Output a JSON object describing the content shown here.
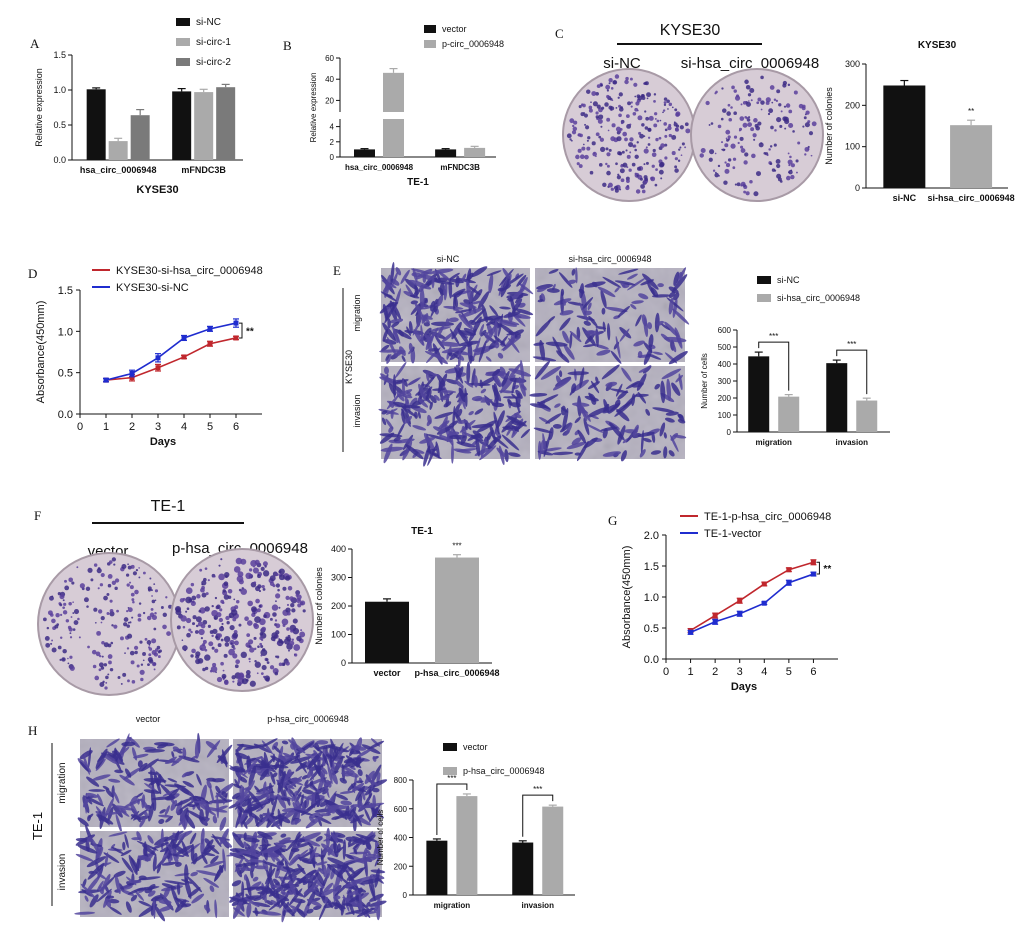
{
  "panels": {
    "A": {
      "letter": "A"
    },
    "B": {
      "letter": "B"
    },
    "C": {
      "letter": "C",
      "group": "KYSE30",
      "labels": [
        "si-NC",
        "si-hsa_circ_0006948"
      ]
    },
    "D": {
      "letter": "D"
    },
    "E": {
      "letter": "E",
      "col_labels": [
        "si-NC",
        "si-hsa_circ_0006948"
      ],
      "row_labels": [
        "migration",
        "invasion"
      ],
      "side_label": "KYSE30"
    },
    "F": {
      "letter": "F",
      "group": "TE-1",
      "labels": [
        "vector",
        "p-hsa_circ_0006948"
      ]
    },
    "G": {
      "letter": "G"
    },
    "H": {
      "letter": "H",
      "col_labels": [
        "vector",
        "p-hsa_circ_0006948"
      ],
      "row_labels": [
        "migration",
        "invasion"
      ],
      "side_label": "TE-1"
    }
  },
  "chart_data": [
    {
      "id": "A",
      "type": "bar",
      "title": "",
      "xlabel": "KYSE30",
      "ylabel": "Relative expression",
      "ylim": [
        0,
        1.5
      ],
      "yticks": [
        "0.0",
        "0.5",
        "1.0",
        "1.5"
      ],
      "categories": [
        "hsa_circ_0006948",
        "mFNDC3B"
      ],
      "series": [
        {
          "name": "si-NC",
          "color": "#111111",
          "values": [
            1.01,
            0.98
          ],
          "errors": [
            0.02,
            0.04
          ]
        },
        {
          "name": "si-circ-1",
          "color": "#aaaaaa",
          "values": [
            0.27,
            0.97
          ],
          "errors": [
            0.04,
            0.04
          ]
        },
        {
          "name": "si-circ-2",
          "color": "#7a7a7a",
          "values": [
            0.64,
            1.04
          ],
          "errors": [
            0.08,
            0.04
          ]
        }
      ]
    },
    {
      "id": "B",
      "type": "bar",
      "title": "",
      "xlabel": "TE-1",
      "ylabel": "Relative expression",
      "ylim": [
        0,
        60
      ],
      "yticks": [
        "0",
        "2",
        "4",
        "20",
        "40",
        "60"
      ],
      "categories": [
        "hsa_circ_0006948",
        "mFNDC3B"
      ],
      "series": [
        {
          "name": "vector",
          "color": "#111111",
          "values": [
            1,
            1
          ],
          "errors": [
            0.1,
            0.1
          ]
        },
        {
          "name": "p-circ_0006948",
          "color": "#aaaaaa",
          "values": [
            46,
            1.2
          ],
          "errors": [
            4,
            0.2
          ]
        }
      ]
    },
    {
      "id": "C",
      "type": "bar",
      "title": "KYSE30",
      "xlabel": "",
      "ylabel": "Number of colonies",
      "ylim": [
        0,
        300
      ],
      "yticks": [
        "0",
        "100",
        "200",
        "300"
      ],
      "categories": [
        "si-NC",
        "si-hsa_circ_0006948"
      ],
      "values": [
        248,
        152
      ],
      "errors": [
        12,
        12
      ],
      "colors": [
        "#111111",
        "#aaaaaa"
      ],
      "significance": [
        "",
        "**"
      ]
    },
    {
      "id": "D",
      "type": "line",
      "title": "",
      "xlabel": "Days",
      "ylabel": "Absorbance(450mm)",
      "xlim": [
        0,
        7
      ],
      "ylim": [
        0,
        1.5
      ],
      "xticks": [
        "0",
        "1",
        "2",
        "3",
        "4",
        "5",
        "6"
      ],
      "yticks": [
        "0.0",
        "0.5",
        "1.0",
        "1.5"
      ],
      "x": [
        1,
        2,
        3,
        4,
        5,
        6
      ],
      "series": [
        {
          "name": "KYSE30-si-hsa_circ_0006948",
          "color": "#c0272d",
          "values": [
            0.41,
            0.44,
            0.56,
            0.69,
            0.85,
            0.92
          ],
          "errors": [
            0.02,
            0.04,
            0.04,
            0.02,
            0.03,
            0.02
          ]
        },
        {
          "name": "KYSE30-si-NC",
          "color": "#1f2ccf",
          "values": [
            0.41,
            0.49,
            0.68,
            0.92,
            1.03,
            1.1
          ],
          "errors": [
            0.02,
            0.04,
            0.05,
            0.03,
            0.03,
            0.05
          ]
        }
      ],
      "annotation": "**"
    },
    {
      "id": "E",
      "type": "bar",
      "title": "",
      "xlabel": "",
      "ylabel": "Number of cells",
      "ylim": [
        0,
        600
      ],
      "yticks": [
        "0",
        "100",
        "200",
        "300",
        "400",
        "500",
        "600"
      ],
      "categories": [
        "migration",
        "invasion"
      ],
      "series": [
        {
          "name": "si-NC",
          "color": "#111111",
          "values": [
            445,
            405
          ],
          "errors": [
            25,
            18
          ]
        },
        {
          "name": "si-hsa_circ_0006948",
          "color": "#aaaaaa",
          "values": [
            208,
            185
          ],
          "errors": [
            12,
            14
          ]
        }
      ],
      "significance": [
        "***",
        "***"
      ]
    },
    {
      "id": "F",
      "type": "bar",
      "title": "TE-1",
      "xlabel": "",
      "ylabel": "Number of colonies",
      "ylim": [
        0,
        400
      ],
      "yticks": [
        "0",
        "100",
        "200",
        "300",
        "400"
      ],
      "categories": [
        "vector",
        "p-hsa_circ_0006948"
      ],
      "values": [
        215,
        370
      ],
      "errors": [
        10,
        10
      ],
      "colors": [
        "#111111",
        "#aaaaaa"
      ],
      "significance": [
        "",
        "***"
      ]
    },
    {
      "id": "G",
      "type": "line",
      "title": "",
      "xlabel": "Days",
      "ylabel": "Absorbance(450mm)",
      "xlim": [
        0,
        7
      ],
      "ylim": [
        0,
        2.0
      ],
      "xticks": [
        "0",
        "1",
        "2",
        "3",
        "4",
        "5",
        "6"
      ],
      "yticks": [
        "0.0",
        "0.5",
        "1.0",
        "1.5",
        "2.0"
      ],
      "x": [
        1,
        2,
        3,
        4,
        5,
        6
      ],
      "series": [
        {
          "name": "TE-1-p-hsa_circ_0006948",
          "color": "#c0272d",
          "values": [
            0.46,
            0.7,
            0.94,
            1.21,
            1.44,
            1.56
          ],
          "errors": [
            0.03,
            0.04,
            0.04,
            0.03,
            0.03,
            0.04
          ]
        },
        {
          "name": "TE-1-vector",
          "color": "#1f2ccf",
          "values": [
            0.43,
            0.6,
            0.73,
            0.9,
            1.23,
            1.37
          ],
          "errors": [
            0.03,
            0.04,
            0.04,
            0.02,
            0.04,
            0.03
          ]
        }
      ],
      "annotation": "**"
    },
    {
      "id": "H",
      "type": "bar",
      "title": "",
      "xlabel": "",
      "ylabel": "Number of cells",
      "ylim": [
        0,
        800
      ],
      "yticks": [
        "0",
        "200",
        "400",
        "600",
        "800"
      ],
      "categories": [
        "migration",
        "invasion"
      ],
      "series": [
        {
          "name": "vector",
          "color": "#111111",
          "values": [
            378,
            365
          ],
          "errors": [
            12,
            12
          ]
        },
        {
          "name": "p-hsa_circ_0006948",
          "color": "#aaaaaa",
          "values": [
            688,
            615
          ],
          "errors": [
            15,
            10
          ]
        }
      ],
      "significance": [
        "***",
        "***"
      ]
    }
  ]
}
